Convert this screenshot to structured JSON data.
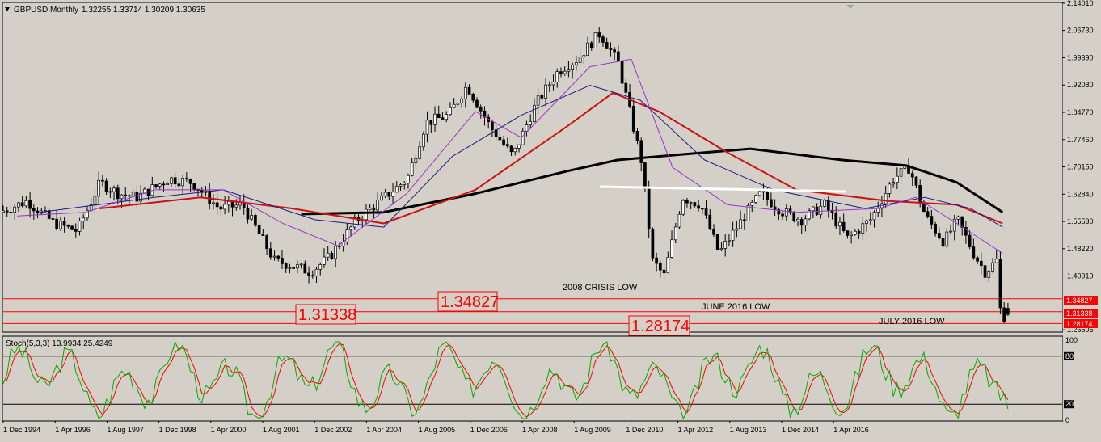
{
  "header": {
    "symbol": "GBPUSD,Monthly",
    "ohlc": "1.32255 1.33714 1.30209 1.30635",
    "stoch_label": "Stoch(5,3,3) 13.9934 25.4249"
  },
  "colors": {
    "background": "#d4d0c8",
    "bull_candle": "#ffffff",
    "bear_candle": "#000000",
    "ma_long": "#000000",
    "ma_mid": "#cc1111",
    "ma_slow_blue": "#1a1a80",
    "ma_fast_purple": "#9933cc",
    "stoch_main": "#00aa00",
    "stoch_signal": "#ff0000",
    "levels": "#ff0000",
    "resistance": "#ffffff"
  },
  "annotations": {
    "crisis": "2008 CRISIS LOW",
    "june": "JUNE 2016 LOW",
    "july": "JULY 2016 LOW",
    "box_1": "1.34827",
    "box_2": "1.31338",
    "box_3": "1.28174"
  },
  "chart_data": {
    "type": "candlestick",
    "timeframe": "Monthly",
    "symbol": "GBPUSD",
    "last_ohlc": {
      "open": 1.32255,
      "high": 1.33714,
      "low": 1.30209,
      "close": 1.30635
    },
    "ylim": [
      1.261,
      2.14
    ],
    "x_range": [
      "Sep 1994",
      "Jul 2016"
    ],
    "y_ticks": [
      "2.14010",
      "2.06730",
      "1.99390",
      "1.92080",
      "1.84770",
      "1.77460",
      "1.70150",
      "1.62840",
      "1.55530",
      "1.48220",
      "1.40910",
      "1.26505"
    ],
    "x_ticks": [
      "1 Dec 1994",
      "1 Apr 1996",
      "1 Aug 1997",
      "1 Dec 1998",
      "1 Apr 2000",
      "1 Aug 2001",
      "1 Dec 2002",
      "1 Apr 2004",
      "1 Aug 2005",
      "1 Dec 2006",
      "1 Apr 2008",
      "1 Aug 2009",
      "1 Dec 2010",
      "1 Apr 2012",
      "1 Aug 2013",
      "1 Dec 2014",
      "1 Apr 2016"
    ],
    "price_tags": [
      "1.34827",
      "1.31338",
      "1.28174"
    ],
    "levels": [
      {
        "name": "2008 CRISIS LOW",
        "value": 1.34827
      },
      {
        "name": "JUNE 2016 LOW",
        "value": 1.31338
      },
      {
        "name": "JULY 2016 LOW",
        "value": 1.28174
      }
    ],
    "resistance_line": {
      "from": "Jun 2009",
      "to": "Jun 2016",
      "value": 1.665
    },
    "trend_points": [
      {
        "date": 1994.7,
        "v": 1.58
      },
      {
        "date": 1995.3,
        "v": 1.61
      },
      {
        "date": 1995.9,
        "v": 1.55
      },
      {
        "date": 1996.4,
        "v": 1.53
      },
      {
        "date": 1996.9,
        "v": 1.66
      },
      {
        "date": 1997.3,
        "v": 1.63
      },
      {
        "date": 1997.7,
        "v": 1.62
      },
      {
        "date": 1998.4,
        "v": 1.67
      },
      {
        "date": 1998.9,
        "v": 1.66
      },
      {
        "date": 1999.5,
        "v": 1.59
      },
      {
        "date": 2000.0,
        "v": 1.6
      },
      {
        "date": 2000.7,
        "v": 1.45
      },
      {
        "date": 2001.0,
        "v": 1.44
      },
      {
        "date": 2001.5,
        "v": 1.42
      },
      {
        "date": 2001.9,
        "v": 1.46
      },
      {
        "date": 2002.5,
        "v": 1.56
      },
      {
        "date": 2003.0,
        "v": 1.61
      },
      {
        "date": 2003.6,
        "v": 1.67
      },
      {
        "date": 2004.0,
        "v": 1.82
      },
      {
        "date": 2004.5,
        "v": 1.84
      },
      {
        "date": 2004.9,
        "v": 1.92
      },
      {
        "date": 2005.4,
        "v": 1.81
      },
      {
        "date": 2005.9,
        "v": 1.73
      },
      {
        "date": 2006.4,
        "v": 1.87
      },
      {
        "date": 2006.9,
        "v": 1.96
      },
      {
        "date": 2007.3,
        "v": 1.99
      },
      {
        "date": 2007.8,
        "v": 2.06
      },
      {
        "date": 2008.2,
        "v": 1.98
      },
      {
        "date": 2008.7,
        "v": 1.72
      },
      {
        "date": 2008.95,
        "v": 1.45
      },
      {
        "date": 2009.2,
        "v": 1.41
      },
      {
        "date": 2009.6,
        "v": 1.62
      },
      {
        "date": 2010.0,
        "v": 1.6
      },
      {
        "date": 2010.4,
        "v": 1.47
      },
      {
        "date": 2010.9,
        "v": 1.56
      },
      {
        "date": 2011.3,
        "v": 1.63
      },
      {
        "date": 2011.8,
        "v": 1.58
      },
      {
        "date": 2012.2,
        "v": 1.56
      },
      {
        "date": 2012.7,
        "v": 1.6
      },
      {
        "date": 2013.2,
        "v": 1.51
      },
      {
        "date": 2013.7,
        "v": 1.56
      },
      {
        "date": 2014.2,
        "v": 1.67
      },
      {
        "date": 2014.55,
        "v": 1.7
      },
      {
        "date": 2014.9,
        "v": 1.57
      },
      {
        "date": 2015.3,
        "v": 1.5
      },
      {
        "date": 2015.6,
        "v": 1.56
      },
      {
        "date": 2015.95,
        "v": 1.47
      },
      {
        "date": 2016.2,
        "v": 1.42
      },
      {
        "date": 2016.45,
        "v": 1.45
      },
      {
        "date": 2016.5,
        "v": 1.33
      },
      {
        "date": 2016.6,
        "v": 1.3
      }
    ],
    "moving_averages": [
      {
        "name": "MA long",
        "color": "#000000",
        "points": [
          {
            "date": 2001.2,
            "v": 1.575
          },
          {
            "date": 2003.0,
            "v": 1.58
          },
          {
            "date": 2005.0,
            "v": 1.63
          },
          {
            "date": 2007.0,
            "v": 1.69
          },
          {
            "date": 2008.1,
            "v": 1.72
          },
          {
            "date": 2009.5,
            "v": 1.735
          },
          {
            "date": 2011.0,
            "v": 1.75
          },
          {
            "date": 2013.0,
            "v": 1.72
          },
          {
            "date": 2014.4,
            "v": 1.705
          },
          {
            "date": 2015.5,
            "v": 1.66
          },
          {
            "date": 2016.5,
            "v": 1.58
          }
        ]
      },
      {
        "name": "MA mid",
        "color": "#cc1111",
        "points": [
          {
            "date": 1996.8,
            "v": 1.59
          },
          {
            "date": 1999.0,
            "v": 1.62
          },
          {
            "date": 2001.0,
            "v": 1.59
          },
          {
            "date": 2003.0,
            "v": 1.55
          },
          {
            "date": 2005.0,
            "v": 1.64
          },
          {
            "date": 2007.0,
            "v": 1.81
          },
          {
            "date": 2008.0,
            "v": 1.9
          },
          {
            "date": 2009.0,
            "v": 1.85
          },
          {
            "date": 2010.5,
            "v": 1.74
          },
          {
            "date": 2012.0,
            "v": 1.64
          },
          {
            "date": 2014.0,
            "v": 1.61
          },
          {
            "date": 2015.5,
            "v": 1.6
          },
          {
            "date": 2016.5,
            "v": 1.55
          }
        ]
      },
      {
        "name": "MA blue",
        "color": "#1a1a80",
        "points": [
          {
            "date": 1995.5,
            "v": 1.58
          },
          {
            "date": 1998.0,
            "v": 1.62
          },
          {
            "date": 1999.5,
            "v": 1.64
          },
          {
            "date": 2001.5,
            "v": 1.56
          },
          {
            "date": 2003.0,
            "v": 1.54
          },
          {
            "date": 2004.5,
            "v": 1.73
          },
          {
            "date": 2006.0,
            "v": 1.84
          },
          {
            "date": 2007.5,
            "v": 1.92
          },
          {
            "date": 2008.6,
            "v": 1.88
          },
          {
            "date": 2010.0,
            "v": 1.72
          },
          {
            "date": 2011.5,
            "v": 1.64
          },
          {
            "date": 2013.5,
            "v": 1.59
          },
          {
            "date": 2014.8,
            "v": 1.62
          },
          {
            "date": 2015.8,
            "v": 1.59
          },
          {
            "date": 2016.5,
            "v": 1.54
          }
        ]
      },
      {
        "name": "MA purple",
        "color": "#9933cc",
        "points": [
          {
            "date": 1995.0,
            "v": 1.57
          },
          {
            "date": 1996.5,
            "v": 1.58
          },
          {
            "date": 1998.0,
            "v": 1.64
          },
          {
            "date": 1999.5,
            "v": 1.64
          },
          {
            "date": 2000.8,
            "v": 1.55
          },
          {
            "date": 2002.0,
            "v": 1.49
          },
          {
            "date": 2003.5,
            "v": 1.63
          },
          {
            "date": 2005.0,
            "v": 1.85
          },
          {
            "date": 2006.0,
            "v": 1.78
          },
          {
            "date": 2007.5,
            "v": 1.97
          },
          {
            "date": 2008.4,
            "v": 1.99
          },
          {
            "date": 2009.3,
            "v": 1.7
          },
          {
            "date": 2010.5,
            "v": 1.6
          },
          {
            "date": 2012.0,
            "v": 1.58
          },
          {
            "date": 2013.8,
            "v": 1.59
          },
          {
            "date": 2014.6,
            "v": 1.62
          },
          {
            "date": 2015.5,
            "v": 1.55
          },
          {
            "date": 2016.5,
            "v": 1.47
          }
        ]
      }
    ],
    "stochastic": {
      "params": "(5,3,3)",
      "main": 13.9934,
      "signal": 25.4249,
      "ylim": [
        0,
        100
      ],
      "levels": [
        80,
        20
      ],
      "y_ticks": [
        "100",
        "80",
        "20",
        "0"
      ]
    }
  }
}
